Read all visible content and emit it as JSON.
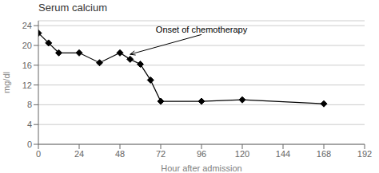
{
  "chart_data": {
    "type": "line",
    "title": "Serum calcium",
    "x": [
      0,
      6,
      12,
      24,
      36,
      48,
      54,
      60,
      66,
      72,
      96,
      120,
      168
    ],
    "values": [
      22.5,
      20.5,
      18.5,
      18.5,
      16.5,
      18.5,
      17.2,
      16.2,
      13.0,
      8.7,
      8.7,
      9.0,
      8.2
    ],
    "xlabel": "Hour after admission",
    "ylabel": "mg/dl",
    "annotation": {
      "text": "Onset of chemotherapy",
      "x": 54,
      "y": 18.2,
      "text_x": 96,
      "text_y": 22.2
    },
    "xlim": [
      0,
      192
    ],
    "ylim": [
      0,
      25
    ],
    "xticks": [
      0,
      24,
      48,
      72,
      96,
      120,
      144,
      168,
      192
    ],
    "yticks": [
      0,
      4,
      8,
      12,
      16,
      20,
      24
    ],
    "grid": "y",
    "color": "#000000",
    "marker": "diamond"
  }
}
